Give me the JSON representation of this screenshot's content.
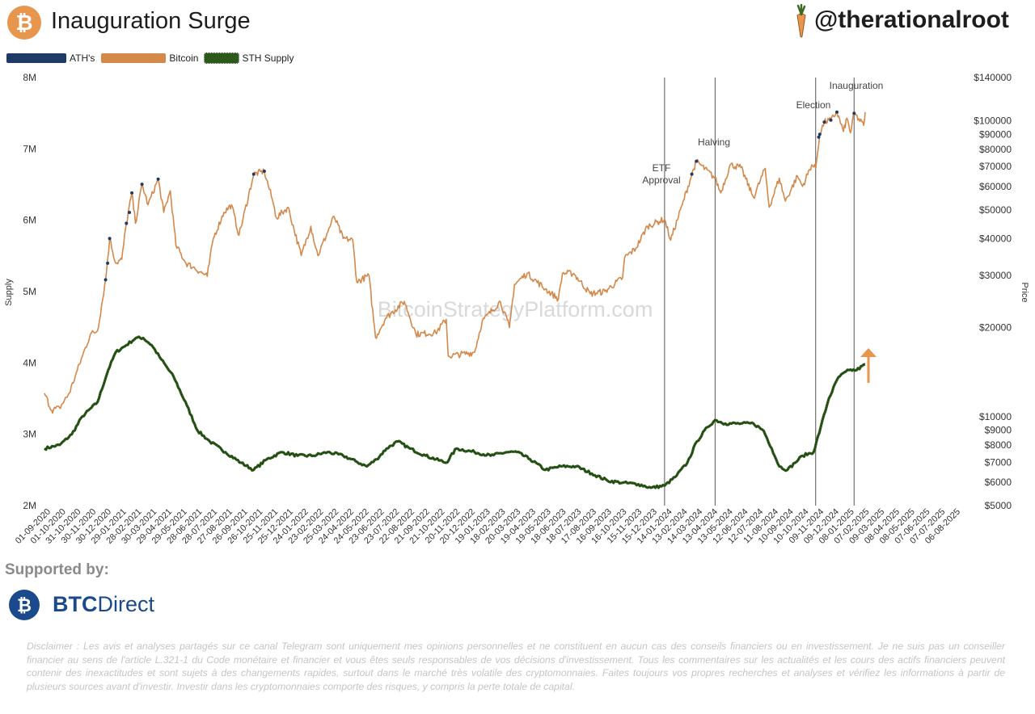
{
  "header": {
    "title": "Inauguration Surge",
    "handle": "@therationalroot",
    "bitcoin_logo_glyph": "₿"
  },
  "legend": [
    {
      "label": "ATH's",
      "color": "#1f3a66"
    },
    {
      "label": "Bitcoin",
      "color": "#d4884a"
    },
    {
      "label": "STH Supply",
      "color": "#2d5a1b"
    }
  ],
  "watermark": "BitcoinStrategyPlatform.com",
  "sponsor": {
    "supported_label": "Supported by:",
    "name_bold": "BTC",
    "name_regular": "Direct",
    "logo_glyph": "₿"
  },
  "disclaimer": "Disclaimer : Les avis et analyses partagés sur ce canal Telegram sont uniquement mes opinions personnelles et ne constituent en aucun cas des conseils financiers ou en investissement. Je ne suis pas un conseiller financier au sens de l'article L.321-1 du Code monétaire et financier et vous êtes seuls responsables de vos décisions d'investissement. Tous les commentaires sur les actualités et les cours des actifs financiers peuvent contenir des inexactitudes et sont sujets à des changements rapides, surtout dans le marché très volatile des cryptomonnaies. Faites toujours vos propres recherches et analyses et vérifiez les informations à partir de plusieurs sources avant d'investir. Investir dans les cryptomonnaies comporte des risques, y compris la perte totale de capital.",
  "colors": {
    "bitcoin": "#d4884a",
    "sth": "#2d5a1b",
    "ath": "#1f3a66",
    "event_line": "#555555",
    "arrow": "#e8954e",
    "logo_orange": "#e8954e",
    "sponsor_blue": "#1a4a8c"
  },
  "chart_data": {
    "type": "line",
    "x_tick_labels": [
      "01-09-2020",
      "01-10-2020",
      "31-10-2020",
      "30-11-2020",
      "30-12-2020",
      "29-01-2021",
      "28-02-2021",
      "30-03-2021",
      "29-04-2021",
      "29-05-2021",
      "28-06-2021",
      "28-07-2021",
      "27-08-2021",
      "26-09-2021",
      "26-10-2021",
      "25-11-2021",
      "25-12-2021",
      "24-01-2022",
      "23-02-2022",
      "25-03-2022",
      "24-04-2022",
      "24-05-2022",
      "23-06-2022",
      "23-07-2022",
      "22-08-2022",
      "21-09-2022",
      "21-10-2022",
      "20-11-2022",
      "20-12-2022",
      "19-01-2023",
      "18-02-2023",
      "20-03-2023",
      "19-04-2023",
      "19-05-2023",
      "18-06-2023",
      "18-07-2023",
      "17-08-2023",
      "16-09-2023",
      "16-10-2023",
      "15-11-2023",
      "15-12-2023",
      "14-01-2024",
      "13-02-2024",
      "14-03-2024",
      "13-04-2024",
      "13-05-2024",
      "12-06-2024",
      "12-07-2024",
      "11-08-2024",
      "10-09-2024",
      "10-10-2024",
      "09-11-2024",
      "09-12-2024",
      "08-01-2025",
      "07-02-2025",
      "09-03-2025",
      "08-04-2025",
      "08-05-2025",
      "07-06-2025",
      "07-07-2025",
      "06-08-2025"
    ],
    "y_left": {
      "label": "Supply",
      "min": 2000000,
      "max": 8000000,
      "ticks": [
        [
          2000000,
          "2M"
        ],
        [
          3000000,
          "3M"
        ],
        [
          4000000,
          "4M"
        ],
        [
          5000000,
          "5M"
        ],
        [
          6000000,
          "6M"
        ],
        [
          7000000,
          "7M"
        ],
        [
          8000000,
          "8M"
        ]
      ]
    },
    "y_right": {
      "label": "Price",
      "scale": "log",
      "min": 5000,
      "max": 140000,
      "ticks": [
        [
          5000,
          "$5000"
        ],
        [
          6000,
          "$6000"
        ],
        [
          7000,
          "$7000"
        ],
        [
          8000,
          "$8000"
        ],
        [
          9000,
          "$9000"
        ],
        [
          10000,
          "$10000"
        ],
        [
          20000,
          "$20000"
        ],
        [
          30000,
          "$30000"
        ],
        [
          40000,
          "$40000"
        ],
        [
          50000,
          "$50000"
        ],
        [
          60000,
          "$60000"
        ],
        [
          70000,
          "$70000"
        ],
        [
          80000,
          "$80000"
        ],
        [
          90000,
          "$90000"
        ],
        [
          100000,
          "$100000"
        ],
        [
          140000,
          "$140000"
        ]
      ]
    },
    "events": [
      {
        "date": "2024-01-11",
        "label": [
          "ETF",
          "Approval"
        ]
      },
      {
        "date": "2024-04-20",
        "label": [
          "Halving"
        ]
      },
      {
        "date": "2024-11-05",
        "label": [
          "Election"
        ]
      },
      {
        "date": "2025-01-20",
        "label": [
          "Inauguration"
        ]
      }
    ],
    "series": [
      {
        "name": "Bitcoin",
        "axis": "right",
        "points": [
          [
            "2020-09-01",
            12000
          ],
          [
            "2020-09-15",
            10500
          ],
          [
            "2020-10-01",
            10700
          ],
          [
            "2020-10-20",
            12000
          ],
          [
            "2020-11-01",
            13700
          ],
          [
            "2020-11-15",
            16000
          ],
          [
            "2020-12-01",
            19000
          ],
          [
            "2020-12-15",
            19500
          ],
          [
            "2020-12-31",
            29000
          ],
          [
            "2021-01-08",
            40000
          ],
          [
            "2021-01-20",
            33000
          ],
          [
            "2021-02-01",
            34000
          ],
          [
            "2021-02-10",
            45000
          ],
          [
            "2021-02-21",
            57000
          ],
          [
            "2021-02-28",
            45000
          ],
          [
            "2021-03-13",
            61000
          ],
          [
            "2021-03-25",
            52000
          ],
          [
            "2021-04-14",
            63500
          ],
          [
            "2021-04-25",
            49000
          ],
          [
            "2021-05-08",
            58000
          ],
          [
            "2021-05-19",
            38000
          ],
          [
            "2021-06-08",
            33000
          ],
          [
            "2021-06-22",
            32000
          ],
          [
            "2021-07-20",
            29800
          ],
          [
            "2021-08-01",
            40000
          ],
          [
            "2021-08-22",
            49000
          ],
          [
            "2021-09-06",
            52000
          ],
          [
            "2021-09-21",
            41000
          ],
          [
            "2021-10-20",
            66000
          ],
          [
            "2021-11-10",
            67500
          ],
          [
            "2021-11-26",
            54000
          ],
          [
            "2021-12-04",
            47000
          ],
          [
            "2021-12-27",
            51000
          ],
          [
            "2022-01-22",
            35000
          ],
          [
            "2022-02-10",
            44000
          ],
          [
            "2022-02-24",
            35000
          ],
          [
            "2022-03-28",
            47500
          ],
          [
            "2022-04-15",
            40000
          ],
          [
            "2022-05-04",
            39500
          ],
          [
            "2022-05-12",
            28500
          ],
          [
            "2022-06-05",
            30000
          ],
          [
            "2022-06-18",
            18500
          ],
          [
            "2022-07-08",
            21500
          ],
          [
            "2022-08-14",
            24500
          ],
          [
            "2022-09-06",
            19000
          ],
          [
            "2022-10-15",
            19200
          ],
          [
            "2022-11-05",
            21300
          ],
          [
            "2022-11-09",
            16000
          ],
          [
            "2022-12-31",
            16500
          ],
          [
            "2023-01-15",
            21000
          ],
          [
            "2023-02-20",
            24500
          ],
          [
            "2023-03-10",
            20000
          ],
          [
            "2023-03-20",
            28000
          ],
          [
            "2023-04-14",
            30500
          ],
          [
            "2023-05-20",
            27000
          ],
          [
            "2023-06-15",
            25000
          ],
          [
            "2023-06-23",
            30500
          ],
          [
            "2023-07-15",
            30500
          ],
          [
            "2023-08-17",
            26000
          ],
          [
            "2023-09-15",
            26500
          ],
          [
            "2023-10-20",
            29500
          ],
          [
            "2023-10-24",
            34500
          ],
          [
            "2023-11-15",
            37000
          ],
          [
            "2023-12-08",
            44000
          ],
          [
            "2024-01-11",
            46500
          ],
          [
            "2024-01-23",
            39500
          ],
          [
            "2024-02-15",
            52000
          ],
          [
            "2024-03-05",
            66000
          ],
          [
            "2024-03-14",
            73000
          ],
          [
            "2024-04-20",
            64000
          ],
          [
            "2024-05-01",
            57000
          ],
          [
            "2024-05-20",
            71000
          ],
          [
            "2024-06-10",
            69500
          ],
          [
            "2024-07-05",
            55000
          ],
          [
            "2024-07-28",
            69000
          ],
          [
            "2024-08-05",
            51000
          ],
          [
            "2024-08-25",
            64000
          ],
          [
            "2024-09-06",
            53500
          ],
          [
            "2024-09-30",
            65000
          ],
          [
            "2024-10-10",
            60000
          ],
          [
            "2024-10-28",
            71000
          ],
          [
            "2024-11-05",
            69000
          ],
          [
            "2024-11-13",
            90000
          ],
          [
            "2024-11-22",
            99000
          ],
          [
            "2024-12-05",
            100500
          ],
          [
            "2024-12-17",
            107000
          ],
          [
            "2024-12-30",
            92000
          ],
          [
            "2025-01-06",
            102000
          ],
          [
            "2025-01-13",
            91000
          ],
          [
            "2025-01-20",
            106000
          ],
          [
            "2025-02-08",
            96500
          ],
          [
            "2025-02-11",
            107000
          ]
        ]
      },
      {
        "name": "STH Supply",
        "axis": "left",
        "points": [
          [
            "2020-09-01",
            2800000
          ],
          [
            "2020-10-01",
            2850000
          ],
          [
            "2020-10-25",
            3000000
          ],
          [
            "2020-11-15",
            3250000
          ],
          [
            "2020-12-15",
            3450000
          ],
          [
            "2021-01-05",
            3900000
          ],
          [
            "2021-01-20",
            4150000
          ],
          [
            "2021-02-10",
            4250000
          ],
          [
            "2021-03-01",
            4350000
          ],
          [
            "2021-03-15",
            4350000
          ],
          [
            "2021-04-01",
            4250000
          ],
          [
            "2021-04-20",
            4050000
          ],
          [
            "2021-05-15",
            3800000
          ],
          [
            "2021-06-10",
            3400000
          ],
          [
            "2021-07-01",
            3050000
          ],
          [
            "2021-07-25",
            2900000
          ],
          [
            "2021-08-25",
            2750000
          ],
          [
            "2021-09-25",
            2600000
          ],
          [
            "2021-10-20",
            2500000
          ],
          [
            "2021-11-15",
            2650000
          ],
          [
            "2021-12-15",
            2750000
          ],
          [
            "2022-01-15",
            2700000
          ],
          [
            "2022-02-15",
            2700000
          ],
          [
            "2022-03-15",
            2750000
          ],
          [
            "2022-04-15",
            2700000
          ],
          [
            "2022-05-10",
            2620000
          ],
          [
            "2022-06-01",
            2550000
          ],
          [
            "2022-06-20",
            2650000
          ],
          [
            "2022-07-10",
            2800000
          ],
          [
            "2022-08-01",
            2900000
          ],
          [
            "2022-08-25",
            2800000
          ],
          [
            "2022-09-25",
            2700000
          ],
          [
            "2022-11-05",
            2600000
          ],
          [
            "2022-11-25",
            2800000
          ],
          [
            "2022-12-31",
            2750000
          ],
          [
            "2023-02-01",
            2700000
          ],
          [
            "2023-03-05",
            2750000
          ],
          [
            "2023-03-25",
            2750000
          ],
          [
            "2023-04-20",
            2650000
          ],
          [
            "2023-05-20",
            2500000
          ],
          [
            "2023-06-20",
            2550000
          ],
          [
            "2023-07-20",
            2550000
          ],
          [
            "2023-08-20",
            2450000
          ],
          [
            "2023-09-20",
            2350000
          ],
          [
            "2023-10-20",
            2320000
          ],
          [
            "2023-11-20",
            2300000
          ],
          [
            "2023-12-15",
            2250000
          ],
          [
            "2024-01-11",
            2280000
          ],
          [
            "2024-02-01",
            2400000
          ],
          [
            "2024-02-25",
            2600000
          ],
          [
            "2024-03-15",
            2900000
          ],
          [
            "2024-04-05",
            3100000
          ],
          [
            "2024-04-20",
            3200000
          ],
          [
            "2024-05-10",
            3150000
          ],
          [
            "2024-06-10",
            3150000
          ],
          [
            "2024-07-05",
            3150000
          ],
          [
            "2024-07-25",
            3050000
          ],
          [
            "2024-08-10",
            2800000
          ],
          [
            "2024-08-25",
            2550000
          ],
          [
            "2024-09-10",
            2500000
          ],
          [
            "2024-09-25",
            2600000
          ],
          [
            "2024-10-10",
            2700000
          ],
          [
            "2024-11-01",
            2750000
          ],
          [
            "2024-11-15",
            3100000
          ],
          [
            "2024-12-01",
            3500000
          ],
          [
            "2024-12-20",
            3800000
          ],
          [
            "2025-01-10",
            3900000
          ],
          [
            "2025-01-25",
            3900000
          ],
          [
            "2025-02-11",
            3980000
          ]
        ]
      },
      {
        "name": "ATH's",
        "axis": "right",
        "marker": "dots",
        "points": [
          [
            "2020-12-31",
            29000
          ],
          [
            "2021-01-04",
            33000
          ],
          [
            "2021-01-08",
            40000
          ],
          [
            "2021-02-10",
            45000
          ],
          [
            "2021-02-16",
            49000
          ],
          [
            "2021-02-21",
            57000
          ],
          [
            "2021-03-13",
            61000
          ],
          [
            "2021-04-14",
            63500
          ],
          [
            "2021-10-20",
            66000
          ],
          [
            "2021-11-10",
            67500
          ],
          [
            "2024-03-05",
            66000
          ],
          [
            "2024-03-14",
            73000
          ],
          [
            "2024-11-11",
            88000
          ],
          [
            "2024-11-13",
            90000
          ],
          [
            "2024-11-22",
            99000
          ],
          [
            "2024-12-05",
            100500
          ],
          [
            "2024-12-17",
            107000
          ],
          [
            "2025-01-20",
            106000
          ]
        ]
      }
    ]
  }
}
